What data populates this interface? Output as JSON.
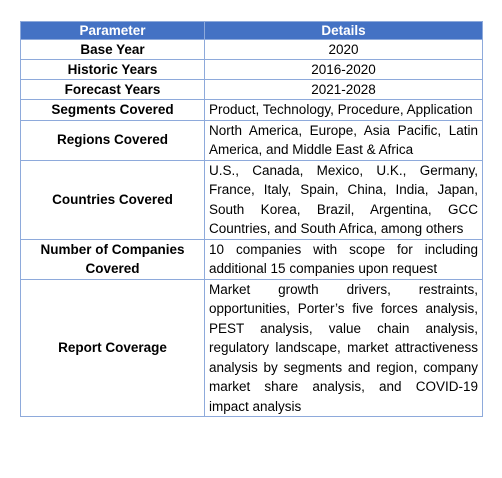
{
  "table": {
    "headers": [
      "Parameter",
      "Details"
    ],
    "colors": {
      "header_bg": "#4472c4",
      "header_text": "#ffffff",
      "border": "#8eaadb"
    },
    "rows": [
      {
        "parameter": "Base Year",
        "details": "2020"
      },
      {
        "parameter": "Historic Years",
        "details": "2016-2020"
      },
      {
        "parameter": "Forecast Years",
        "details": "2021-2028"
      },
      {
        "parameter": "Segments Covered",
        "details": "Product, Technology, Procedure, Application"
      },
      {
        "parameter": "Regions Covered",
        "details": "North America, Europe, Asia Pacific, Latin America, and Middle East & Africa"
      },
      {
        "parameter": "Countries Covered",
        "details": "U.S., Canada, Mexico, U.K., Germany, France, Italy, Spain, China, India, Japan, South Korea, Brazil, Argentina, GCC Countries, and South Africa, among others"
      },
      {
        "parameter": "Number of Companies Covered",
        "details": "10 companies with scope for including additional 15 companies upon request"
      },
      {
        "parameter": "Report Coverage",
        "details": "Market growth drivers, restraints, opportunities, Porter’s five forces analysis, PEST analysis, value chain analysis, regulatory landscape, market attractiveness analysis by segments and region, company market share analysis, and COVID-19 impact analysis"
      }
    ]
  }
}
